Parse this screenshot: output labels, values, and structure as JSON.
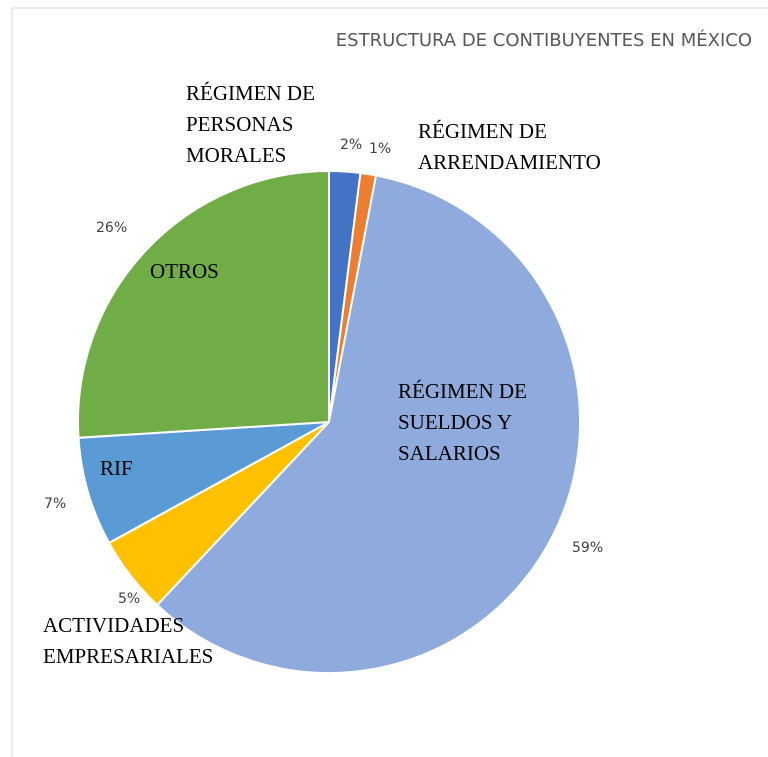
{
  "chart_data": {
    "type": "pie",
    "title": "ESTRUCTURA DE CONTIBUYENTES EN MÉXICO",
    "categories": [
      "RÉGIMEN DE PERSONAS MORALES",
      "RÉGIMEN DE ARRENDAMIENTO",
      "RÉGIMEN DE SUELDOS Y SALARIOS",
      "ACTIVIDADES EMPRESARIALES",
      "RIF",
      "OTROS"
    ],
    "values": [
      2,
      1,
      59,
      5,
      7,
      26
    ],
    "value_labels": [
      "2%",
      "1%",
      "59%",
      "5%",
      "7%",
      "26%"
    ],
    "colors": [
      "#4472c4",
      "#ed7d31",
      "#8faadc",
      "#ffc000",
      "#5b9bd5",
      "#70ad47"
    ]
  }
}
